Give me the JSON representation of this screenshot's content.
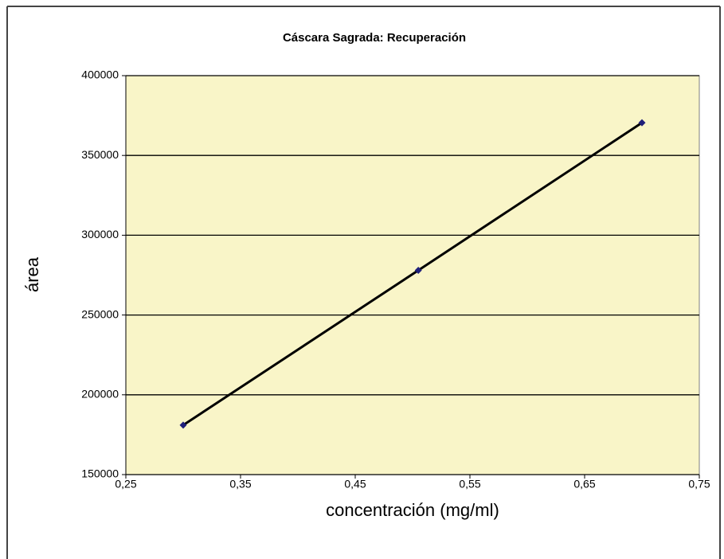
{
  "chart_data": {
    "type": "scatter",
    "title": "Cáscara Sagrada: Recuperación",
    "x_label": "concentración (mg/ml)",
    "y_label": "área",
    "series": [
      {
        "x": [
          0.3,
          0.505,
          0.7
        ],
        "values": [
          181000,
          278000,
          370500
        ],
        "color": "#1f1f7a",
        "line_color": "#000000"
      }
    ],
    "connect": true,
    "xlim": [
      0.25,
      0.75
    ],
    "xticks": [
      {
        "value": 0.25,
        "label": "0,25"
      },
      {
        "value": 0.35,
        "label": "0,35"
      },
      {
        "value": 0.45,
        "label": "0,45"
      },
      {
        "value": 0.55,
        "label": "0,55"
      },
      {
        "value": 0.65,
        "label": "0,65"
      },
      {
        "value": 0.75,
        "label": "0,75"
      }
    ],
    "ylim": [
      150000,
      400000
    ],
    "yticks": [
      150000,
      200000,
      250000,
      300000,
      350000,
      400000
    ],
    "grid": true,
    "plot_background": "#f9f5c8"
  }
}
